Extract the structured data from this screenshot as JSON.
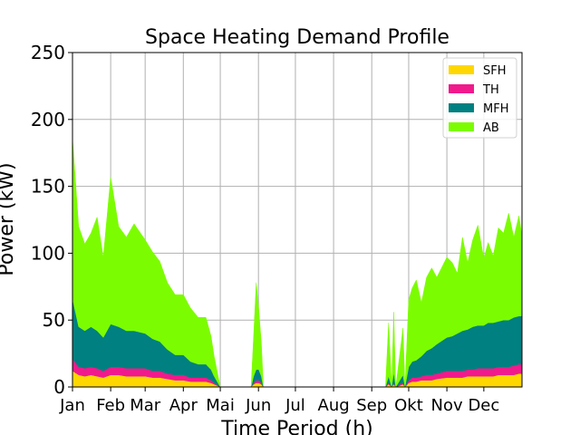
{
  "chart_data": {
    "type": "area",
    "stacked": true,
    "title": "Space Heating Demand Profile",
    "xlabel": "Time Period (h)",
    "ylabel": "Power (kW)",
    "ylim": [
      0,
      250
    ],
    "yticks": [
      0,
      50,
      100,
      150,
      200,
      250
    ],
    "xlim": [
      0,
      8760
    ],
    "xticks": [
      {
        "label": "Jan",
        "hour": 0
      },
      {
        "label": "Feb",
        "hour": 744
      },
      {
        "label": "Mar",
        "hour": 1416
      },
      {
        "label": "Apr",
        "hour": 2160
      },
      {
        "label": "Mai",
        "hour": 2880
      },
      {
        "label": "Jun",
        "hour": 3624
      },
      {
        "label": "Jul",
        "hour": 4344
      },
      {
        "label": "Aug",
        "hour": 5088
      },
      {
        "label": "Sep",
        "hour": 5832
      },
      {
        "label": "Okt",
        "hour": 6552
      },
      {
        "label": "Nov",
        "hour": 7296
      },
      {
        "label": "Dec",
        "hour": 8016
      }
    ],
    "grid": true,
    "legend_position": "top-right",
    "x_hours": [
      0,
      120,
      240,
      360,
      480,
      600,
      744,
      900,
      1050,
      1200,
      1416,
      1560,
      1700,
      1850,
      2000,
      2160,
      2300,
      2450,
      2600,
      2700,
      2760,
      2880,
      3000,
      3300,
      3480,
      3530,
      3580,
      3630,
      3680,
      3720,
      3800,
      4500,
      5500,
      6100,
      6160,
      6220,
      6260,
      6300,
      6380,
      6440,
      6480,
      6552,
      6620,
      6700,
      6800,
      6900,
      7000,
      7100,
      7296,
      7400,
      7500,
      7600,
      7700,
      7800,
      7900,
      8016,
      8100,
      8200,
      8300,
      8400,
      8500,
      8600,
      8700,
      8759
    ],
    "series": [
      {
        "name": "SFH",
        "color": "#FFD700",
        "values": [
          12,
          9,
          8,
          9,
          8,
          7,
          9,
          9,
          8,
          8,
          8,
          7,
          7,
          6,
          5,
          5,
          4,
          4,
          4,
          3,
          2,
          0,
          0,
          0,
          0,
          2,
          3,
          3,
          2,
          0,
          0,
          0,
          0,
          0,
          2,
          0,
          2,
          0,
          1,
          2,
          0,
          3,
          4,
          4,
          5,
          5,
          5,
          6,
          7,
          7,
          7,
          7,
          8,
          8,
          8,
          8,
          8,
          8,
          9,
          9,
          9,
          9,
          10,
          10
        ]
      },
      {
        "name": "TH",
        "color": "#F01A8C",
        "values": [
          9,
          6,
          6,
          6,
          6,
          5,
          6,
          6,
          6,
          6,
          6,
          5,
          5,
          4,
          4,
          4,
          3,
          3,
          3,
          2,
          1,
          0,
          0,
          0,
          0,
          1,
          2,
          2,
          1,
          0,
          0,
          0,
          0,
          0,
          1,
          0,
          1,
          0,
          1,
          1,
          0,
          2,
          3,
          3,
          3,
          4,
          4,
          4,
          5,
          5,
          5,
          5,
          5,
          5,
          6,
          6,
          6,
          6,
          6,
          6,
          6,
          7,
          7,
          7
        ]
      },
      {
        "name": "MFH",
        "color": "#008080",
        "values": [
          45,
          30,
          28,
          30,
          28,
          25,
          32,
          30,
          28,
          28,
          26,
          24,
          22,
          18,
          15,
          15,
          12,
          10,
          10,
          8,
          5,
          0,
          0,
          0,
          0,
          5,
          8,
          8,
          5,
          0,
          0,
          0,
          0,
          0,
          5,
          0,
          8,
          0,
          3,
          6,
          0,
          10,
          12,
          13,
          15,
          18,
          20,
          22,
          25,
          26,
          28,
          30,
          30,
          32,
          32,
          32,
          34,
          34,
          34,
          35,
          35,
          36,
          36,
          36
        ]
      },
      {
        "name": "AB",
        "color": "#7CFC00",
        "values": [
          120,
          75,
          65,
          70,
          85,
          60,
          110,
          75,
          70,
          80,
          70,
          65,
          60,
          50,
          45,
          45,
          40,
          35,
          35,
          25,
          15,
          0,
          0,
          0,
          0,
          30,
          65,
          45,
          25,
          0,
          0,
          0,
          0,
          0,
          40,
          0,
          45,
          0,
          20,
          35,
          0,
          50,
          55,
          60,
          40,
          55,
          60,
          50,
          60,
          55,
          45,
          70,
          50,
          65,
          75,
          50,
          60,
          50,
          70,
          65,
          80,
          60,
          75,
          60
        ]
      }
    ]
  }
}
